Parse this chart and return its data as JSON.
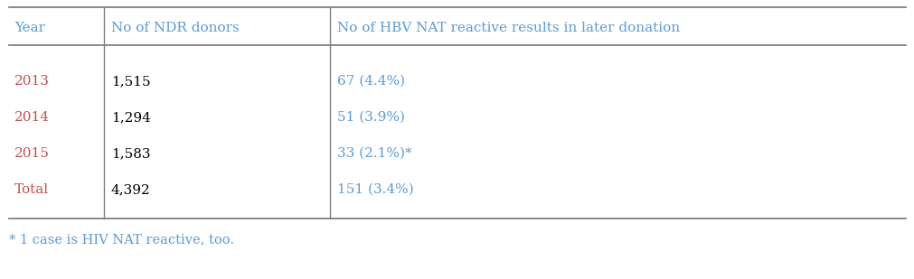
{
  "col_headers": [
    "Year",
    "No of NDR donors",
    "No of HBV NAT reactive results in later donation"
  ],
  "rows": [
    [
      "2013",
      "1,515",
      "67 (4.4%)"
    ],
    [
      "2014",
      "1,294",
      "51 (3.9%)"
    ],
    [
      "2015",
      "1,583",
      "33 (2.1%)*"
    ],
    [
      "Total",
      "4,392",
      "151 (3.4%)"
    ]
  ],
  "footnote": "* 1 case is HIV NAT reactive, too.",
  "header_color": "#5B9BD5",
  "data_color_year": "#C0504D",
  "data_color_ndr": "#000000",
  "data_color_nat": "#5B9BD5",
  "footnote_color": "#5B9BD5",
  "bg_color": "#FFFFFF",
  "line_color": "#808080",
  "fontsize": 11.0,
  "header_fontsize": 11.0
}
